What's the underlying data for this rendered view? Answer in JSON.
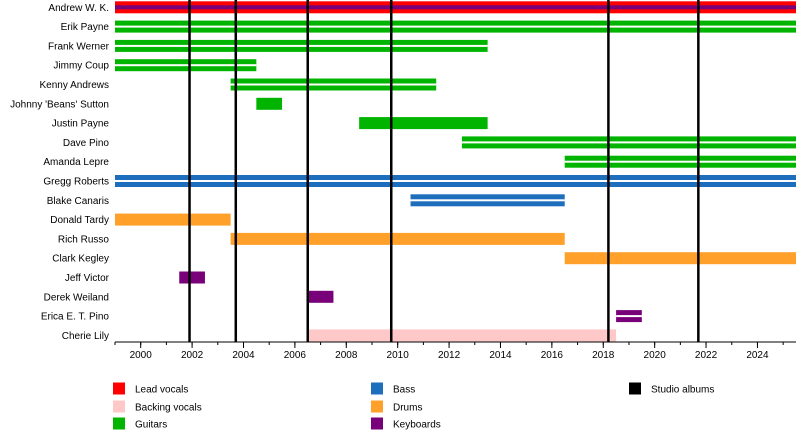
{
  "chart_data": {
    "type": "timeline",
    "x_range": [
      1999,
      2025.5
    ],
    "x_ticks": [
      2000,
      2002,
      2004,
      2006,
      2008,
      2010,
      2012,
      2014,
      2016,
      2018,
      2020,
      2022,
      2024
    ],
    "grid": false,
    "album_years": [
      2001.9,
      2003.7,
      2006.5,
      2009.75,
      2018.2,
      2021.7
    ],
    "roles": {
      "lead_vocals": {
        "label": "Lead vocals",
        "color": "#ff0000"
      },
      "backing_vocals": {
        "label": "Backing vocals",
        "color": "#ffc8c8"
      },
      "guitars": {
        "label": "Guitars",
        "color": "#00b400"
      },
      "bass": {
        "label": "Bass",
        "color": "#1e6ebe"
      },
      "drums": {
        "label": "Drums",
        "color": "#ffa02a"
      },
      "keyboards": {
        "label": "Keyboards",
        "color": "#780078"
      },
      "studio_albums": {
        "label": "Studio albums",
        "color": "#000000"
      }
    },
    "legend_order": [
      "lead_vocals",
      "backing_vocals",
      "guitars",
      "bass",
      "drums",
      "keyboards",
      "studio_albums"
    ],
    "legend_placement": "bottom",
    "members": [
      {
        "name": "Andrew W. K.",
        "start": 1999,
        "end": 2025.5,
        "roles": [
          "lead_vocals",
          "keyboards"
        ]
      },
      {
        "name": "Erik Payne",
        "start": 1999,
        "end": 2025.5,
        "roles": [
          "guitars",
          "guitars"
        ]
      },
      {
        "name": "Frank Werner",
        "start": 1999,
        "end": 2013.5,
        "roles": [
          "guitars",
          "guitars"
        ]
      },
      {
        "name": "Jimmy Coup",
        "start": 1999,
        "end": 2004.5,
        "roles": [
          "guitars",
          "guitars"
        ]
      },
      {
        "name": "Kenny Andrews",
        "start": 2003.5,
        "end": 2011.5,
        "roles": [
          "guitars",
          "guitars"
        ]
      },
      {
        "name": "Johnny 'Beans' Sutton",
        "start": 2004.5,
        "end": 2005.5,
        "roles": [
          "guitars"
        ]
      },
      {
        "name": "Justin Payne",
        "start": 2008.5,
        "end": 2013.5,
        "roles": [
          "guitars"
        ]
      },
      {
        "name": "Dave Pino",
        "start": 2012.5,
        "end": 2025.5,
        "roles": [
          "guitars",
          "guitars"
        ]
      },
      {
        "name": "Amanda Lepre",
        "start": 2016.5,
        "end": 2025.5,
        "roles": [
          "guitars",
          "guitars"
        ]
      },
      {
        "name": "Gregg Roberts",
        "start": 1999,
        "end": 2025.5,
        "roles": [
          "bass",
          "bass"
        ]
      },
      {
        "name": "Blake Canaris",
        "start": 2010.5,
        "end": 2016.5,
        "roles": [
          "bass",
          "bass"
        ]
      },
      {
        "name": "Donald Tardy",
        "start": 1999,
        "end": 2003.5,
        "roles": [
          "drums"
        ]
      },
      {
        "name": "Rich Russo",
        "start": 2003.5,
        "end": 2016.5,
        "roles": [
          "drums"
        ]
      },
      {
        "name": "Clark Kegley",
        "start": 2016.5,
        "end": 2025.5,
        "roles": [
          "drums"
        ]
      },
      {
        "name": "Jeff Victor",
        "start": 2001.5,
        "end": 2002.5,
        "roles": [
          "keyboards"
        ]
      },
      {
        "name": "Derek Weiland",
        "start": 2006.5,
        "end": 2007.5,
        "roles": [
          "keyboards"
        ]
      },
      {
        "name": "Erica E. T. Pino",
        "start": 2018.5,
        "end": 2019.5,
        "roles": [
          "keyboards",
          "keyboards"
        ]
      },
      {
        "name": "Cherie Lily",
        "start": 2006.5,
        "end": 2018.5,
        "roles": [
          "backing_vocals"
        ]
      }
    ]
  }
}
